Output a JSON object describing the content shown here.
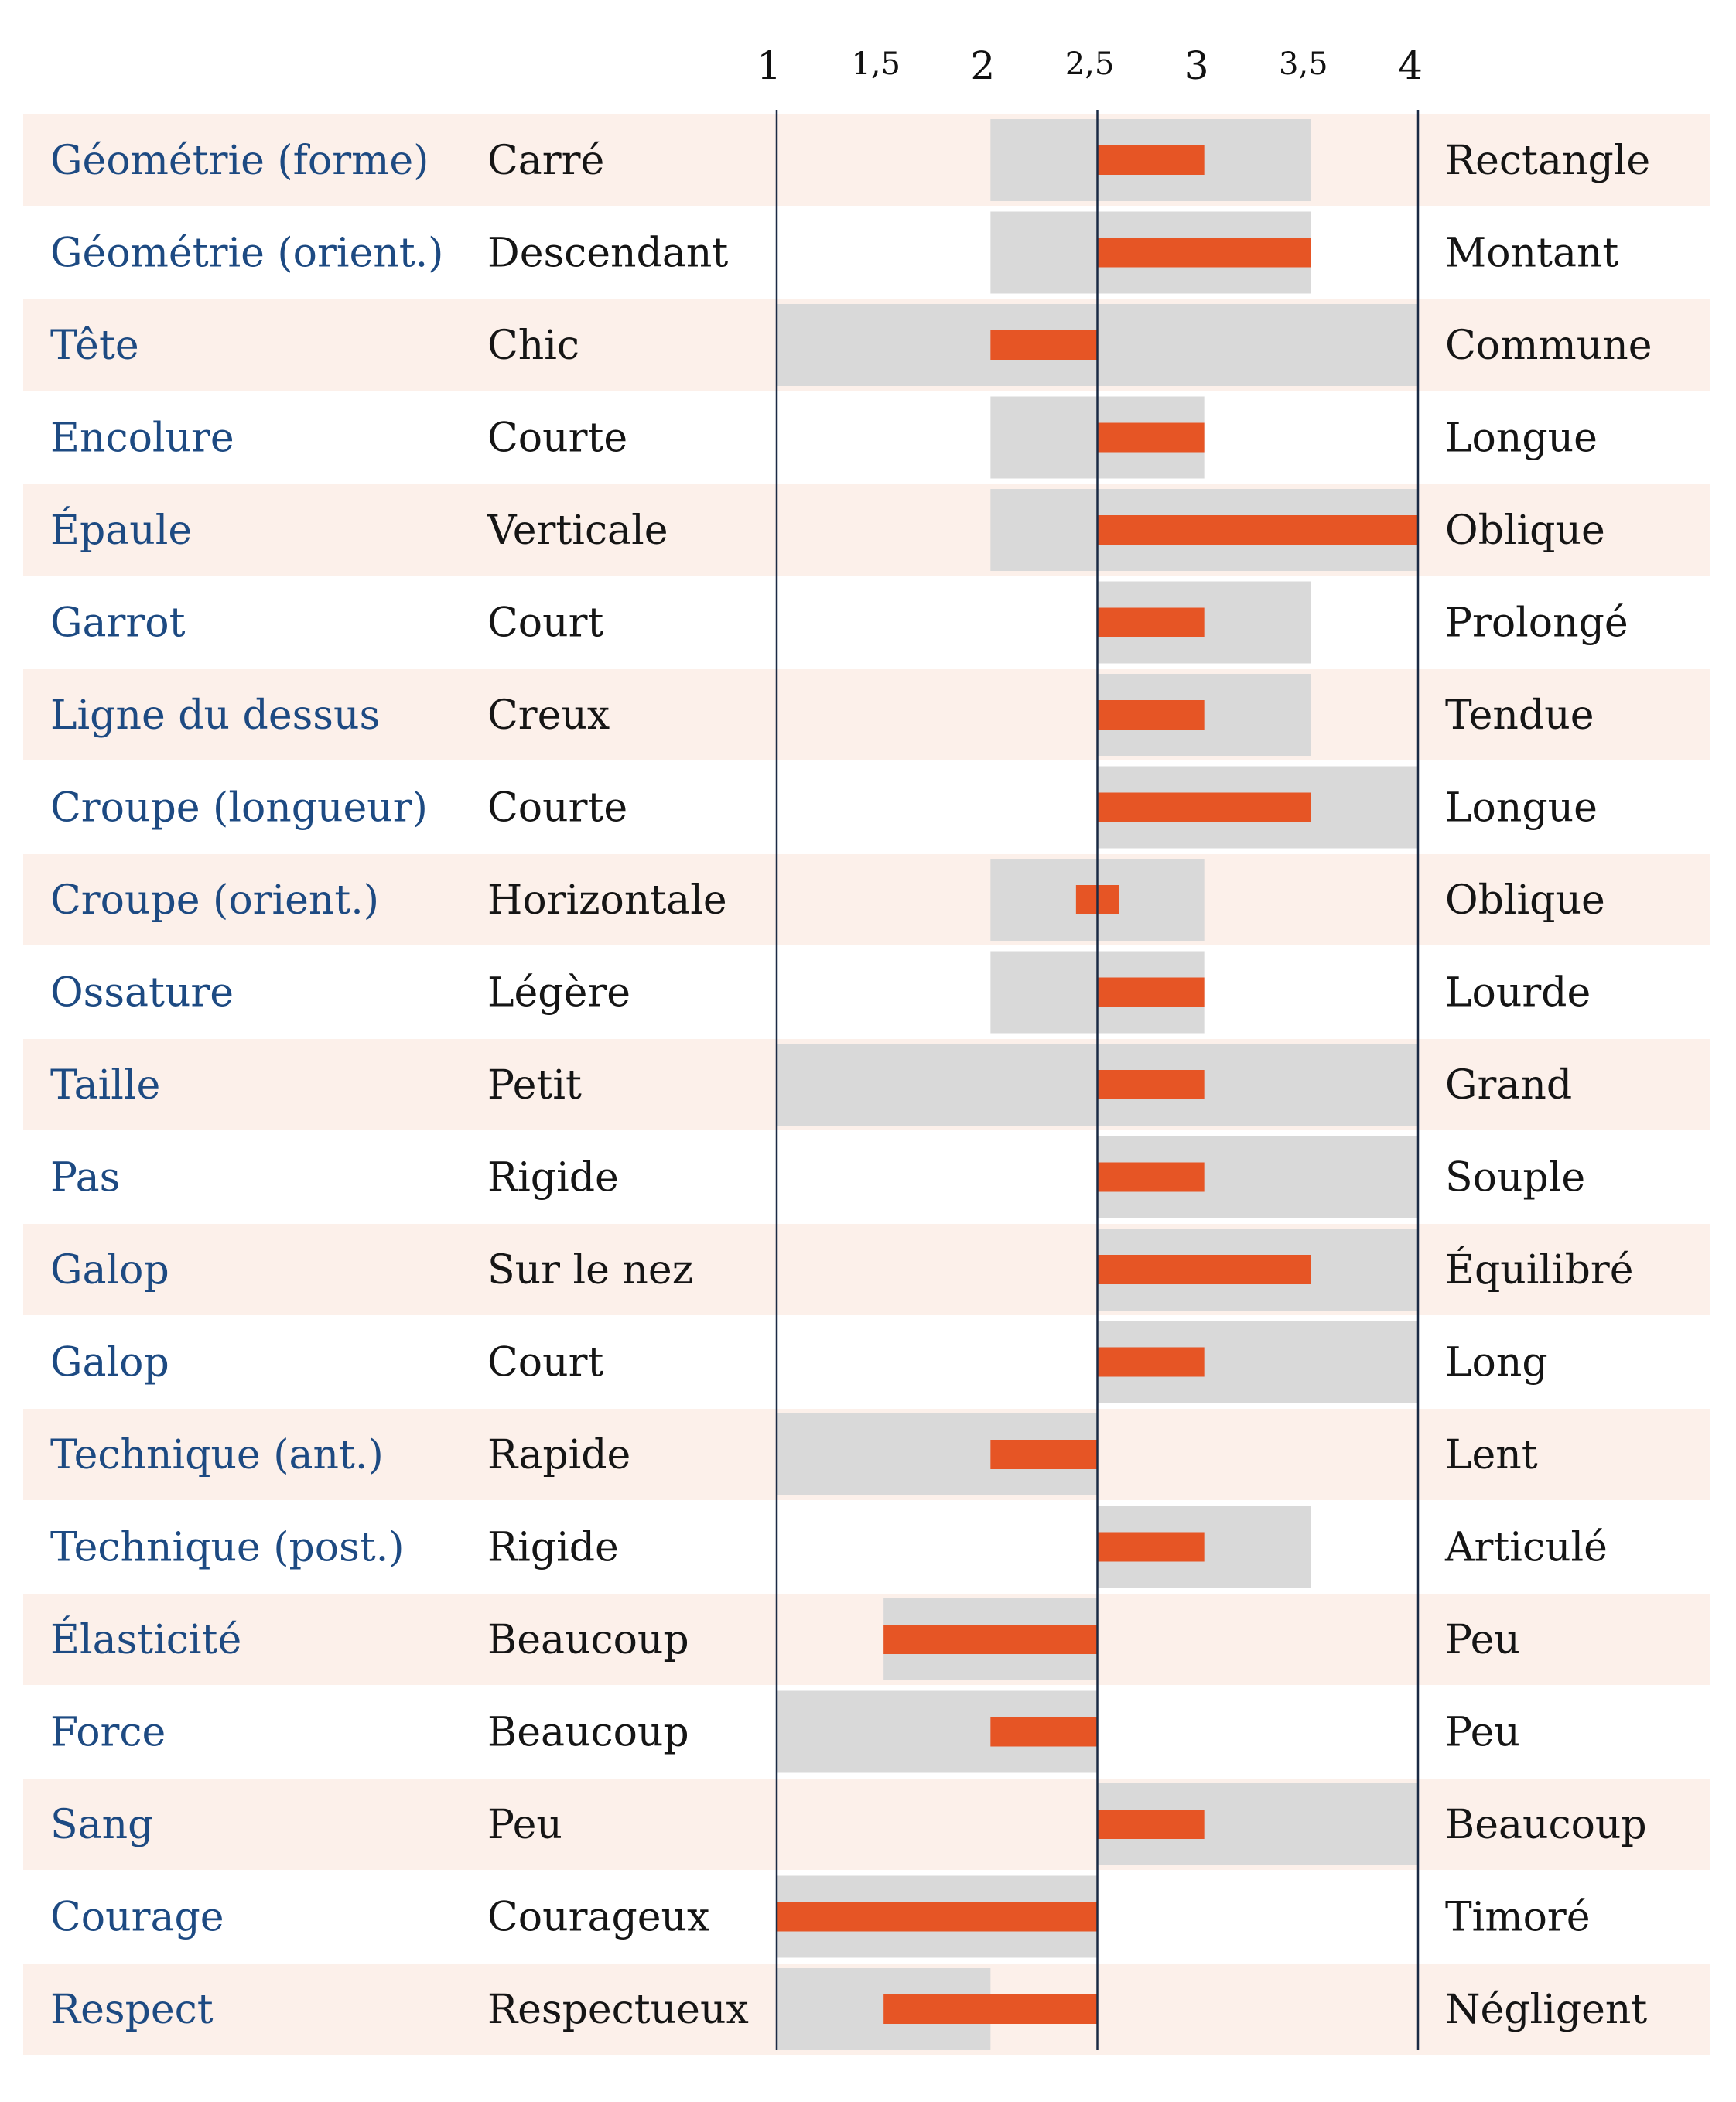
{
  "colors": {
    "row_shade": "#fcf0ea",
    "range": "#d9d9d9",
    "bar": "#e65525",
    "trait_text": "#1d4a82",
    "pole_text": "#151515",
    "axis_line": "#1a2a44"
  },
  "chart_data": {
    "type": "bar",
    "title": "",
    "xlabel": "",
    "ylabel": "",
    "xlim": [
      1,
      4
    ],
    "reference": 2.5,
    "tick_values": [
      1,
      1.5,
      2,
      2.5,
      3,
      3.5,
      4
    ],
    "tick_labels": [
      "1",
      "1,5",
      "2",
      "2,5",
      "3",
      "3,5",
      "4"
    ],
    "vertical_lines": [
      1,
      2.5,
      4
    ],
    "series": [
      {
        "name": "",
        "style": "bar from 2,5 to value"
      },
      {
        "name": "",
        "style": "grey range band"
      }
    ],
    "rows": [
      {
        "trait": "Géométrie (forme)",
        "low": "Carré",
        "high": "Rectangle",
        "value": 3,
        "range": [
          2,
          3.5
        ]
      },
      {
        "trait": "Géométrie (orient.)",
        "low": "Descendant",
        "high": "Montant",
        "value": 3.5,
        "range": [
          2,
          3.5
        ]
      },
      {
        "trait": "Tête",
        "low": "Chic",
        "high": "Commune",
        "value": 2,
        "range": [
          1,
          4
        ]
      },
      {
        "trait": "Encolure",
        "low": "Courte",
        "high": "Longue",
        "value": 3,
        "range": [
          2,
          3
        ]
      },
      {
        "trait": "Épaule",
        "low": "Verticale",
        "high": "Oblique",
        "value": 4,
        "range": [
          2,
          4
        ]
      },
      {
        "trait": "Garrot",
        "low": "Court",
        "high": "Prolongé",
        "value": 3,
        "range": [
          2.5,
          3.5
        ]
      },
      {
        "trait": "Ligne du dessus",
        "low": "Creux",
        "high": "Tendue",
        "value": 3,
        "range": [
          2.5,
          3.5
        ]
      },
      {
        "trait": "Croupe (longueur)",
        "low": "Courte",
        "high": "Longue",
        "value": 3.5,
        "range": [
          2.5,
          4
        ]
      },
      {
        "trait": "Croupe (orient.)",
        "low": "Horizontale",
        "high": "Oblique",
        "value": 2.6,
        "value_start": 2.4,
        "range": [
          2,
          3
        ]
      },
      {
        "trait": "Ossature",
        "low": "Légère",
        "high": "Lourde",
        "value": 3,
        "range": [
          2,
          3
        ]
      },
      {
        "trait": "Taille",
        "low": "Petit",
        "high": "Grand",
        "value": 3,
        "range": [
          1,
          4
        ]
      },
      {
        "trait": "Pas",
        "low": "Rigide",
        "high": "Souple",
        "value": 3,
        "range": [
          2.5,
          4
        ]
      },
      {
        "trait": "Galop",
        "low": "Sur le nez",
        "high": "Équilibré",
        "value": 3.5,
        "range": [
          2.5,
          4
        ]
      },
      {
        "trait": "Galop",
        "low": "Court",
        "high": "Long",
        "value": 3,
        "range": [
          2.5,
          4
        ]
      },
      {
        "trait": "Technique (ant.)",
        "low": "Rapide",
        "high": "Lent",
        "value": 2,
        "range": [
          1,
          2.5
        ]
      },
      {
        "trait": "Technique (post.)",
        "low": "Rigide",
        "high": "Articulé",
        "value": 3,
        "range": [
          2.5,
          3.5
        ]
      },
      {
        "trait": "Élasticité",
        "low": "Beaucoup",
        "high": "Peu",
        "value": 1.5,
        "range": [
          1.5,
          2.5
        ]
      },
      {
        "trait": "Force",
        "low": "Beaucoup",
        "high": "Peu",
        "value": 2,
        "range": [
          1,
          2.5
        ]
      },
      {
        "trait": "Sang",
        "low": "Peu",
        "high": "Beaucoup",
        "value": 3,
        "range": [
          2.5,
          4
        ]
      },
      {
        "trait": "Courage",
        "low": "Courageux",
        "high": "Timoré",
        "value": 1,
        "range": [
          1,
          2.5
        ]
      },
      {
        "trait": "Respect",
        "low": "Respectueux",
        "high": "Négligent",
        "value": 1.5,
        "range": [
          1,
          2
        ]
      }
    ]
  }
}
